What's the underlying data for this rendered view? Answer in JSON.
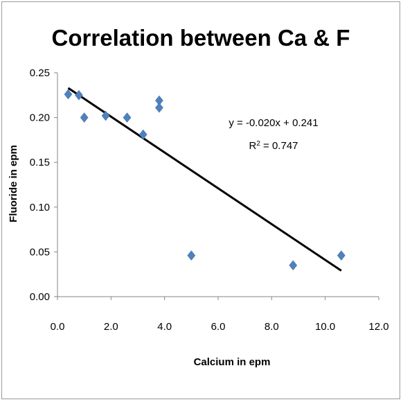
{
  "chart_data": {
    "type": "scatter",
    "title": "Correlation between Ca & F",
    "xlabel": "Calcium in epm",
    "ylabel": "Fluoride in epm",
    "xlim": [
      0,
      12
    ],
    "ylim": [
      0,
      0.25
    ],
    "x_ticks": [
      "0.0",
      "2.0",
      "4.0",
      "6.0",
      "8.0",
      "10.0",
      "12.0"
    ],
    "y_ticks": [
      "0.00",
      "0.05",
      "0.10",
      "0.15",
      "0.20",
      "0.25"
    ],
    "grid": false,
    "marker_color": "#4f81bd",
    "trendline_color": "#000000",
    "points": [
      {
        "x": 0.4,
        "y": 0.226
      },
      {
        "x": 0.8,
        "y": 0.225
      },
      {
        "x": 1.0,
        "y": 0.2
      },
      {
        "x": 1.8,
        "y": 0.202
      },
      {
        "x": 2.6,
        "y": 0.2
      },
      {
        "x": 3.2,
        "y": 0.181
      },
      {
        "x": 3.8,
        "y": 0.219
      },
      {
        "x": 3.8,
        "y": 0.211
      },
      {
        "x": 5.0,
        "y": 0.046
      },
      {
        "x": 8.8,
        "y": 0.035
      },
      {
        "x": 10.6,
        "y": 0.046
      }
    ],
    "trendline": {
      "slope": -0.02,
      "intercept": 0.241,
      "x_range": [
        0.4,
        10.6
      ],
      "equation": "y = -0.020x + 0.241",
      "r2_prefix": "R",
      "r2_suffix": " = 0.747"
    }
  }
}
